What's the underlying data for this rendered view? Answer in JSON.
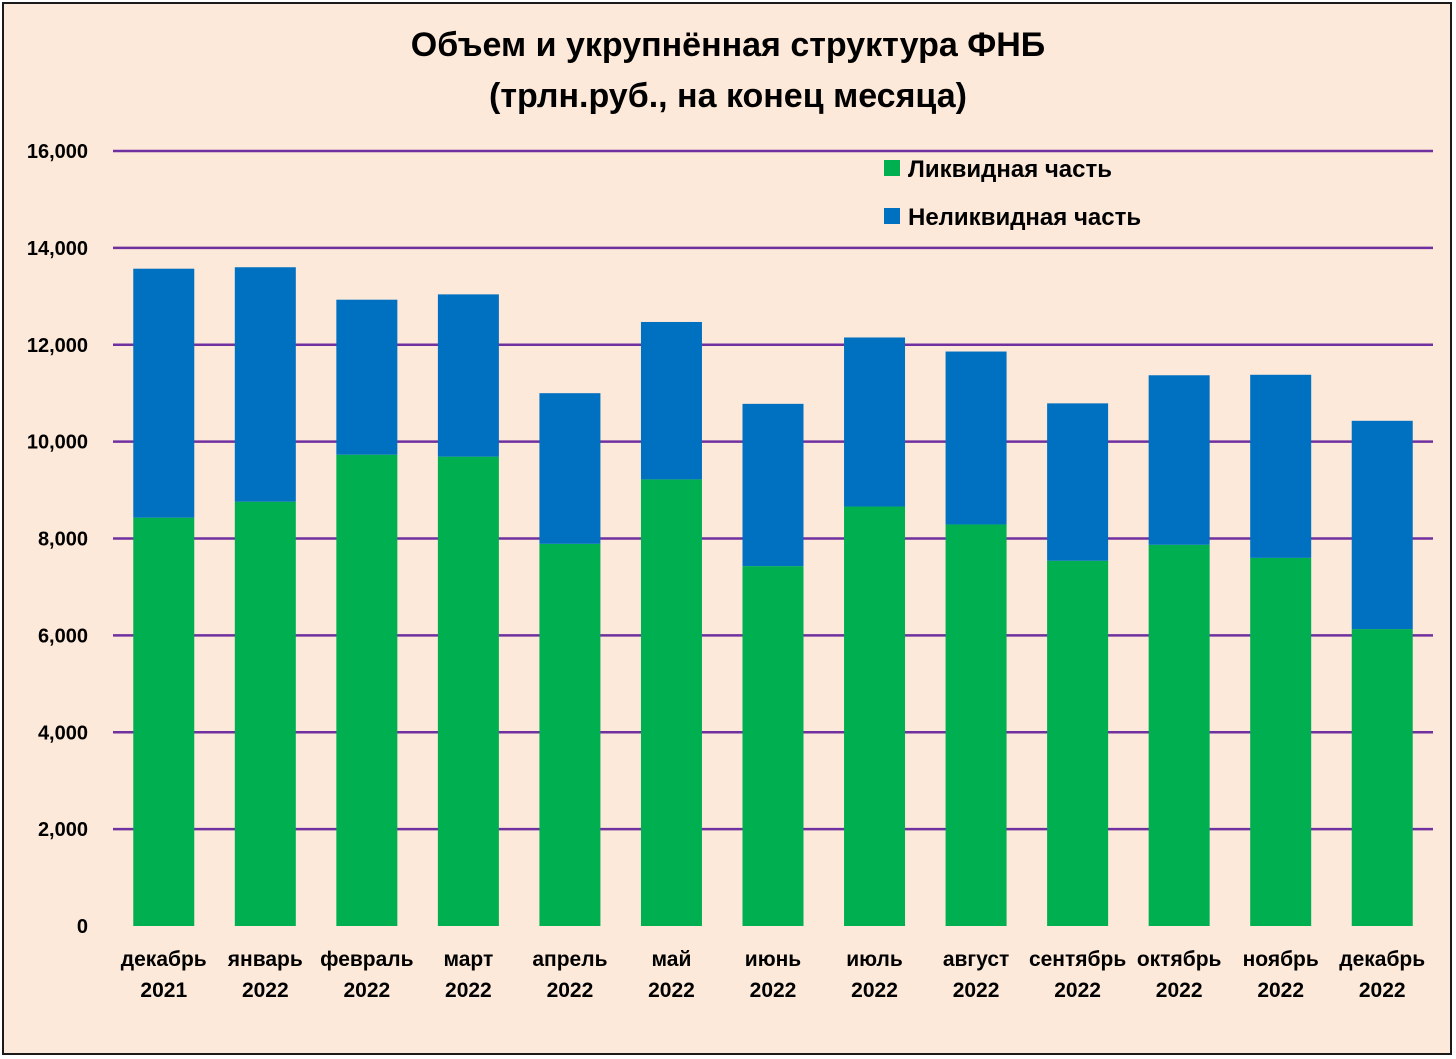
{
  "chart_data": {
    "type": "bar",
    "stacked": true,
    "title": [
      "Объем и укрупнённая структура ФНБ",
      "(трлн.руб., на конец месяца)"
    ],
    "categories": [
      [
        "декабрь",
        "2021"
      ],
      [
        "январь",
        "2022"
      ],
      [
        "февраль",
        "2022"
      ],
      [
        "март",
        "2022"
      ],
      [
        "апрель",
        "2022"
      ],
      [
        "май",
        "2022"
      ],
      [
        "июнь",
        "2022"
      ],
      [
        "июль",
        "2022"
      ],
      [
        "август",
        "2022"
      ],
      [
        "сентябрь",
        "2022"
      ],
      [
        "октябрь",
        "2022"
      ],
      [
        "ноябрь",
        "2022"
      ],
      [
        "декабрь",
        "2022"
      ]
    ],
    "series": [
      {
        "name": "Ликвидная часть",
        "color": "#00b050",
        "values": [
          8.43,
          8.76,
          9.73,
          9.69,
          7.89,
          9.22,
          7.43,
          8.66,
          8.29,
          7.54,
          7.87,
          7.6,
          6.13
        ]
      },
      {
        "name": "Неликвидная часть",
        "color": "#0070c0",
        "values": [
          5.14,
          4.84,
          3.2,
          3.35,
          3.11,
          3.25,
          3.35,
          3.49,
          3.57,
          3.25,
          3.5,
          3.78,
          4.3
        ]
      }
    ],
    "ylim": [
      0,
      16
    ],
    "yticks": [
      "0",
      "2,000",
      "4,000",
      "6,000",
      "8,000",
      "10,000",
      "12,000",
      "14,000",
      "16,000"
    ],
    "grid": true,
    "grid_color": "#7030a0",
    "legend_position": "top-right"
  }
}
